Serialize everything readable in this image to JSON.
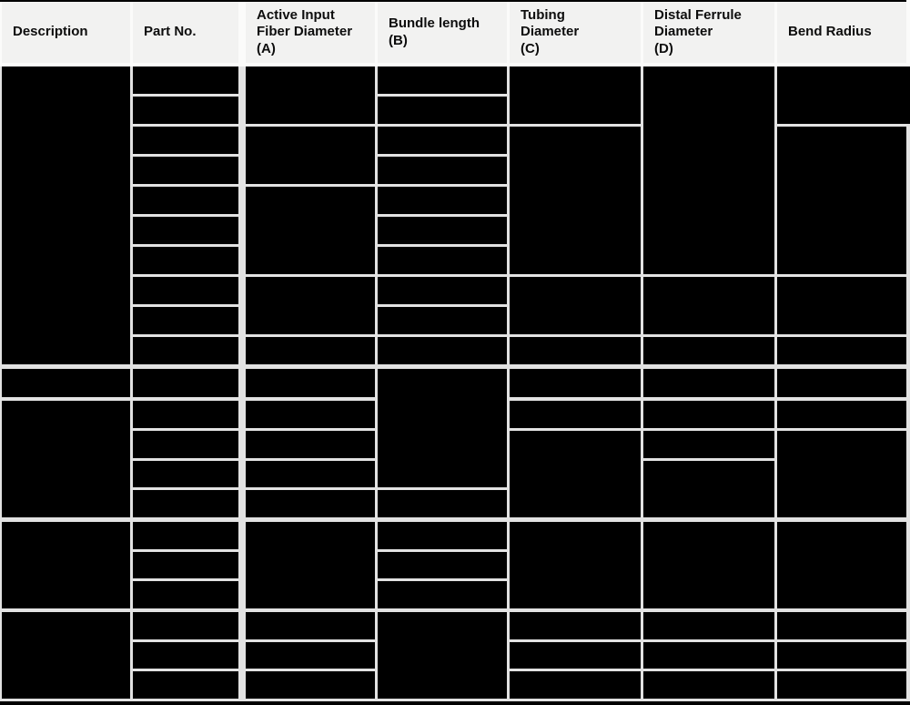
{
  "table": {
    "columns": [
      {
        "id": "description",
        "label": "Description"
      },
      {
        "id": "part_no",
        "label": "Part No."
      },
      {
        "id": "active_input_fiber_diameter",
        "label": "Active Input\nFiber Diameter\n(A)"
      },
      {
        "id": "bundle_length",
        "label": "Bundle length\n(B)"
      },
      {
        "id": "tubing_diameter",
        "label": "Tubing\nDiameter\n(C)"
      },
      {
        "id": "distal_ferrule_diameter",
        "label": "Distal Ferrule\nDiameter\n(D)"
      },
      {
        "id": "bend_radius",
        "label": "Bend Radius"
      }
    ],
    "body": {
      "total_rows": 21,
      "all_values_redacted": true,
      "cell_spans": {
        "description": [
          [
            1,
            10
          ],
          [
            11,
            1
          ],
          [
            12,
            4
          ],
          [
            16,
            3
          ],
          [
            19,
            3
          ]
        ],
        "part_no": [
          [
            1,
            1
          ],
          [
            2,
            1
          ],
          [
            3,
            1
          ],
          [
            4,
            1
          ],
          [
            5,
            1
          ],
          [
            6,
            1
          ],
          [
            7,
            1
          ],
          [
            8,
            1
          ],
          [
            9,
            1
          ],
          [
            10,
            1
          ],
          [
            11,
            1
          ],
          [
            12,
            1
          ],
          [
            13,
            1
          ],
          [
            14,
            1
          ],
          [
            15,
            1
          ],
          [
            16,
            1
          ],
          [
            17,
            1
          ],
          [
            18,
            1
          ],
          [
            19,
            1
          ],
          [
            20,
            1
          ],
          [
            21,
            1
          ]
        ],
        "active_input_fiber_diameter": [
          [
            1,
            2
          ],
          [
            3,
            2
          ],
          [
            5,
            3
          ],
          [
            8,
            2
          ],
          [
            10,
            1
          ],
          [
            11,
            1
          ],
          [
            12,
            1
          ],
          [
            13,
            1
          ],
          [
            14,
            1
          ],
          [
            15,
            1
          ],
          [
            16,
            3
          ],
          [
            19,
            1
          ],
          [
            20,
            1
          ],
          [
            21,
            1
          ]
        ],
        "bundle_length": [
          [
            1,
            1
          ],
          [
            2,
            1
          ],
          [
            3,
            1
          ],
          [
            4,
            1
          ],
          [
            5,
            1
          ],
          [
            6,
            1
          ],
          [
            7,
            1
          ],
          [
            8,
            1
          ],
          [
            9,
            1
          ],
          [
            10,
            1
          ],
          [
            11,
            4
          ],
          [
            15,
            1
          ],
          [
            16,
            1
          ],
          [
            17,
            1
          ],
          [
            18,
            1
          ],
          [
            19,
            3
          ]
        ],
        "tubing_diameter": [
          [
            1,
            2
          ],
          [
            3,
            5
          ],
          [
            8,
            2
          ],
          [
            10,
            1
          ],
          [
            11,
            1
          ],
          [
            12,
            1
          ],
          [
            13,
            3
          ],
          [
            16,
            3
          ],
          [
            19,
            1
          ],
          [
            20,
            1
          ],
          [
            21,
            1
          ]
        ],
        "distal_ferrule_diameter": [
          [
            1,
            7
          ],
          [
            8,
            2
          ],
          [
            10,
            1
          ],
          [
            11,
            1
          ],
          [
            12,
            1
          ],
          [
            13,
            1
          ],
          [
            14,
            2
          ],
          [
            16,
            3
          ],
          [
            19,
            1
          ],
          [
            20,
            1
          ],
          [
            21,
            1
          ]
        ],
        "bend_radius": [
          [
            1,
            2
          ],
          [
            3,
            5
          ],
          [
            8,
            2
          ],
          [
            10,
            1
          ],
          [
            11,
            1
          ],
          [
            12,
            1
          ],
          [
            13,
            3
          ],
          [
            16,
            3
          ],
          [
            19,
            1
          ],
          [
            20,
            1
          ],
          [
            21,
            1
          ]
        ]
      }
    },
    "colors": {
      "header_bg": "#f2f2f1",
      "header_separator": "#fbfbfa",
      "body_separator": "#e2e2e2",
      "redacted_cell": "#000000",
      "top_and_bottom_rule": "#000000"
    }
  }
}
